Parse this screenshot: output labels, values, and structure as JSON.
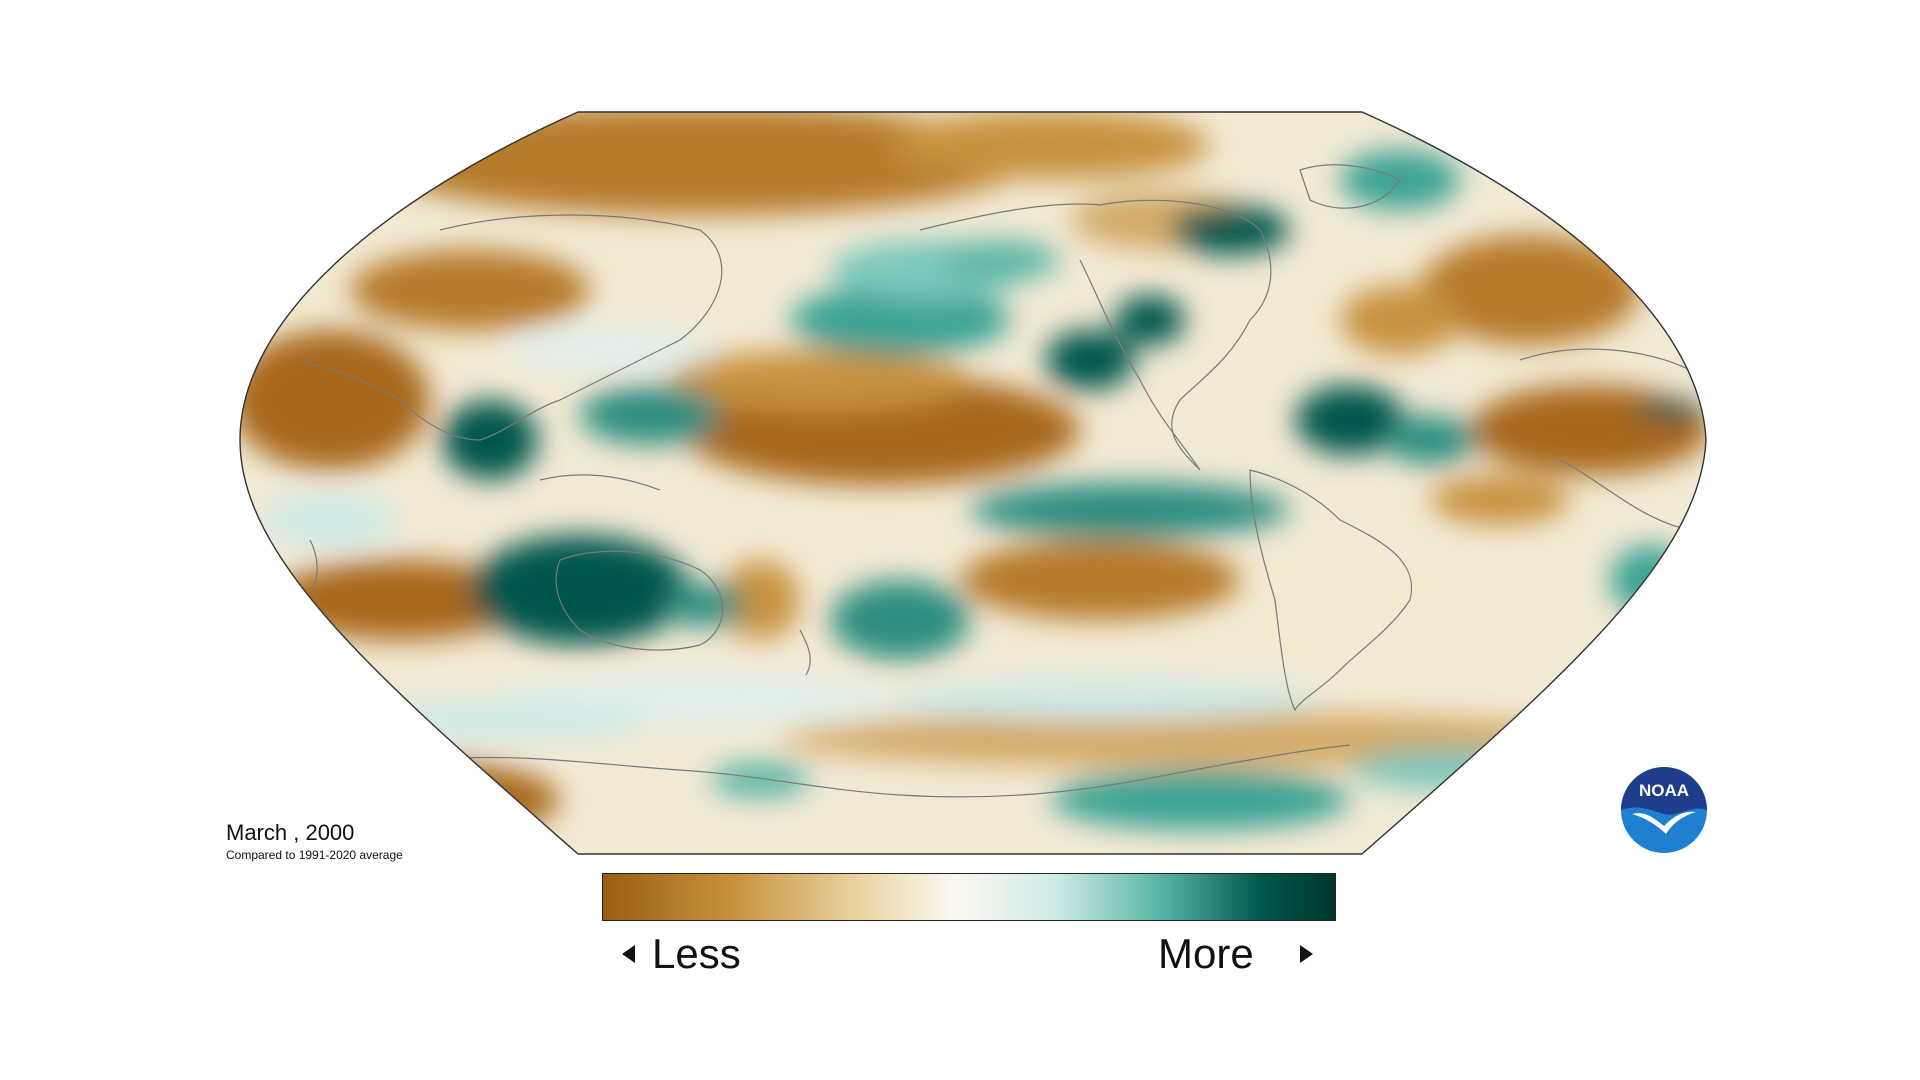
{
  "map": {
    "projection": "Robinson",
    "variable": "precipitation anomaly",
    "palette": {
      "dry_dark": "#9a5e12",
      "dry_mid": "#c8933f",
      "dry_light": "#ecd7a8",
      "neutral": "#f8f5ec",
      "wet_light": "#cdeae6",
      "wet_mid": "#5ab5a6",
      "wet_dark": "#00574d"
    },
    "coastline_color": "#7a7a7a"
  },
  "caption": {
    "date": "March , 2000",
    "baseline": "Compared to 1991-2020 average"
  },
  "legend": {
    "less_label": "Less",
    "more_label": "More",
    "gradient": [
      "#9a5e12",
      "#c8933f",
      "#ecd7a8",
      "#fbf8f0",
      "#cdeae6",
      "#5ab5a6",
      "#00574d",
      "#00352e"
    ]
  },
  "logo": {
    "text": "NOAA",
    "icon": "noaa-bird-icon",
    "colors": {
      "top": "#1e3e8c",
      "bottom": "#1f7fd1",
      "bird": "#ffffff"
    }
  }
}
